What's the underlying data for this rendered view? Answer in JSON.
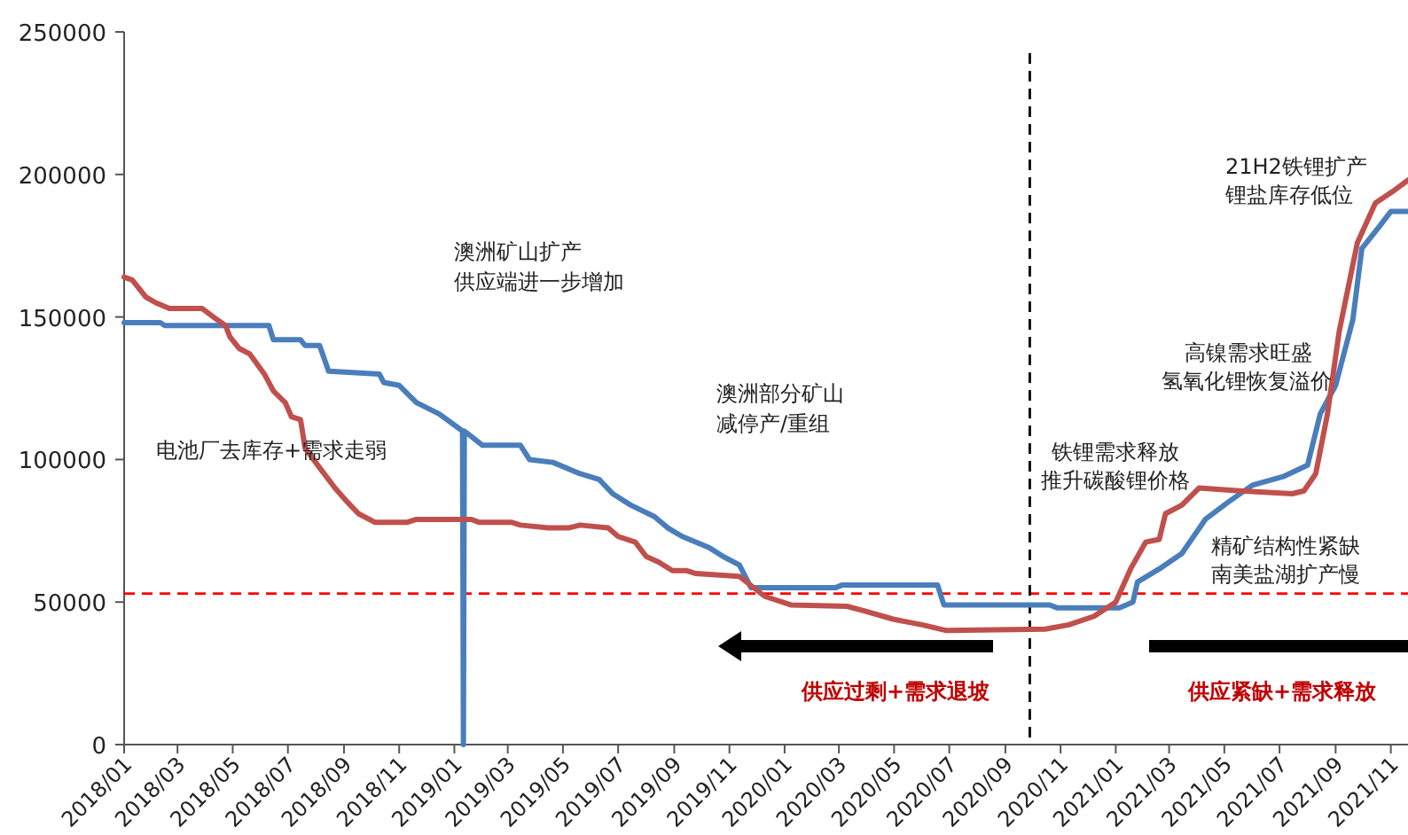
{
  "chart_data": {
    "type": "line",
    "xlim": [
      "2018-01-01",
      "2021-11-20"
    ],
    "xticks": [
      {
        "value": "2018-01",
        "label": "2018/01"
      },
      {
        "value": "2018-03",
        "label": "2018/03"
      },
      {
        "value": "2018-05",
        "label": "2018/05"
      },
      {
        "value": "2018-07",
        "label": "2018/07"
      },
      {
        "value": "2018-09",
        "label": "2018/09"
      },
      {
        "value": "2018-11",
        "label": "2018/11"
      },
      {
        "value": "2019-01",
        "label": "2019/01"
      },
      {
        "value": "2019-03",
        "label": "2019/03"
      },
      {
        "value": "2019-05",
        "label": "2019/05"
      },
      {
        "value": "2019-07",
        "label": "2019/07"
      },
      {
        "value": "2019-09",
        "label": "2019/09"
      },
      {
        "value": "2019-11",
        "label": "2019/11"
      },
      {
        "value": "2020-01",
        "label": "2020/01"
      },
      {
        "value": "2020-03",
        "label": "2020/03"
      },
      {
        "value": "2020-05",
        "label": "2020/05"
      },
      {
        "value": "2020-07",
        "label": "2020/07"
      },
      {
        "value": "2020-09",
        "label": "2020/09"
      },
      {
        "value": "2020-11",
        "label": "2020/11"
      },
      {
        "value": "2021-01",
        "label": "2021/01"
      },
      {
        "value": "2021-03",
        "label": "2021/03"
      },
      {
        "value": "2021-05",
        "label": "2021/05"
      },
      {
        "value": "2021-07",
        "label": "2021/07"
      },
      {
        "value": "2021-09",
        "label": "2021/09"
      },
      {
        "value": "2021-11",
        "label": "2021/11"
      }
    ],
    "ylim": [
      0,
      250000
    ],
    "yticks": [
      0,
      50000,
      100000,
      150000,
      200000,
      250000
    ],
    "grid": false,
    "marker": "none",
    "line_style": "solid",
    "series": [
      {
        "color": "#4a7ebb",
        "x": [
          "2018-01-01",
          "2018-02-10",
          "2018-02-15",
          "2018-06-10",
          "2018-06-15",
          "2018-07-15",
          "2018-07-20",
          "2018-08-05",
          "2018-08-15",
          "2018-10-10",
          "2018-10-15",
          "2018-11-01",
          "2018-11-20",
          "2018-12-15",
          "2019-01-10",
          "2019-01-11",
          "2019-01-12",
          "2019-01-20",
          "2019-02-01",
          "2019-03-15",
          "2019-03-25",
          "2019-04-20",
          "2019-05-20",
          "2019-06-10",
          "2019-06-25",
          "2019-07-15",
          "2019-08-10",
          "2019-08-25",
          "2019-09-10",
          "2019-10-10",
          "2019-10-25",
          "2019-11-12",
          "2019-11-25",
          "2020-02-26",
          "2020-03-05",
          "2020-06-18",
          "2020-06-25",
          "2020-10-20",
          "2020-10-28",
          "2021-01-05",
          "2021-01-20",
          "2021-01-25",
          "2021-02-20",
          "2021-03-15",
          "2021-04-10",
          "2021-05-05",
          "2021-06-01",
          "2021-07-05",
          "2021-08-01",
          "2021-08-15",
          "2021-09-01",
          "2021-09-20",
          "2021-09-30",
          "2021-10-20",
          "2021-11-01",
          "2021-11-20"
        ],
        "values": [
          148000,
          148000,
          147000,
          147000,
          142000,
          142000,
          140000,
          140000,
          131000,
          130000,
          127000,
          126000,
          120000,
          116000,
          110000,
          0,
          110000,
          108000,
          105000,
          105000,
          100000,
          99000,
          95000,
          93000,
          88000,
          84000,
          80000,
          76000,
          73000,
          69000,
          66000,
          63000,
          55000,
          55000,
          56000,
          56000,
          49000,
          49000,
          48000,
          48000,
          50000,
          57000,
          62000,
          67000,
          79000,
          85000,
          91000,
          94000,
          98000,
          116000,
          126000,
          149000,
          174000,
          182000,
          187000,
          187000
        ]
      },
      {
        "color": "#c0504d",
        "x": [
          "2018-01-01",
          "2018-01-10",
          "2018-01-25",
          "2018-02-05",
          "2018-02-20",
          "2018-03-28",
          "2018-04-14",
          "2018-04-23",
          "2018-04-28",
          "2018-05-08",
          "2018-05-20",
          "2018-06-05",
          "2018-06-15",
          "2018-06-28",
          "2018-07-05",
          "2018-07-15",
          "2018-07-20",
          "2018-08-03",
          "2018-08-22",
          "2018-09-05",
          "2018-09-17",
          "2018-10-05",
          "2018-11-10",
          "2018-11-20",
          "2019-01-20",
          "2019-01-28",
          "2019-03-05",
          "2019-03-15",
          "2019-04-15",
          "2019-05-07",
          "2019-05-20",
          "2019-06-20",
          "2019-07-01",
          "2019-07-20",
          "2019-08-01",
          "2019-08-15",
          "2019-08-30",
          "2019-09-15",
          "2019-09-25",
          "2019-11-12",
          "2019-12-10",
          "2020-01-08",
          "2020-03-10",
          "2020-03-28",
          "2020-04-30",
          "2020-06-01",
          "2020-06-28",
          "2020-10-15",
          "2020-11-10",
          "2020-12-08",
          "2021-01-01",
          "2021-01-18",
          "2021-02-03",
          "2021-02-18",
          "2021-02-25",
          "2021-03-15",
          "2021-04-03",
          "2021-05-18",
          "2021-07-15",
          "2021-07-28",
          "2021-08-10",
          "2021-08-23",
          "2021-09-05",
          "2021-09-25",
          "2021-10-15",
          "2021-11-03",
          "2021-11-20"
        ],
        "values": [
          164000,
          163000,
          157000,
          155000,
          153000,
          153000,
          149000,
          147000,
          143000,
          139000,
          137000,
          130000,
          124000,
          120000,
          115000,
          114000,
          104000,
          98000,
          90000,
          85000,
          81000,
          78000,
          78000,
          79000,
          79000,
          78000,
          78000,
          77000,
          76000,
          76000,
          77000,
          76000,
          73000,
          71000,
          66000,
          64000,
          61000,
          61000,
          60000,
          59000,
          52000,
          49000,
          48500,
          47000,
          44000,
          42000,
          40000,
          40500,
          42000,
          45000,
          50000,
          62000,
          71000,
          72000,
          81000,
          84000,
          90000,
          89000,
          88000,
          89000,
          95000,
          116000,
          145000,
          176000,
          190000,
          194000,
          198000
        ]
      }
    ],
    "ref_lines": [
      {
        "axis": "y",
        "value": 53000,
        "color": "#ff0000",
        "line_style": "dashed"
      },
      {
        "axis": "x",
        "value": "2020-09-28",
        "color": "#000000",
        "line_style": "dashed"
      }
    ],
    "annotations": [
      "电池厂去库存+需求走弱",
      "澳洲矿山扩产",
      "供应端进一步增加",
      "澳洲部分矿山",
      "减停产/重组",
      "铁锂需求释放",
      "推升碳酸锂价格",
      "高镍需求旺盛",
      "氢氧化锂恢复溢价",
      "21H2铁锂扩产",
      "锂盐库存低位",
      "精矿结构性紧缺",
      "南美盐湖扩产慢",
      "供应过剩+需求退坡",
      "供应紧缺+需求释放"
    ]
  }
}
